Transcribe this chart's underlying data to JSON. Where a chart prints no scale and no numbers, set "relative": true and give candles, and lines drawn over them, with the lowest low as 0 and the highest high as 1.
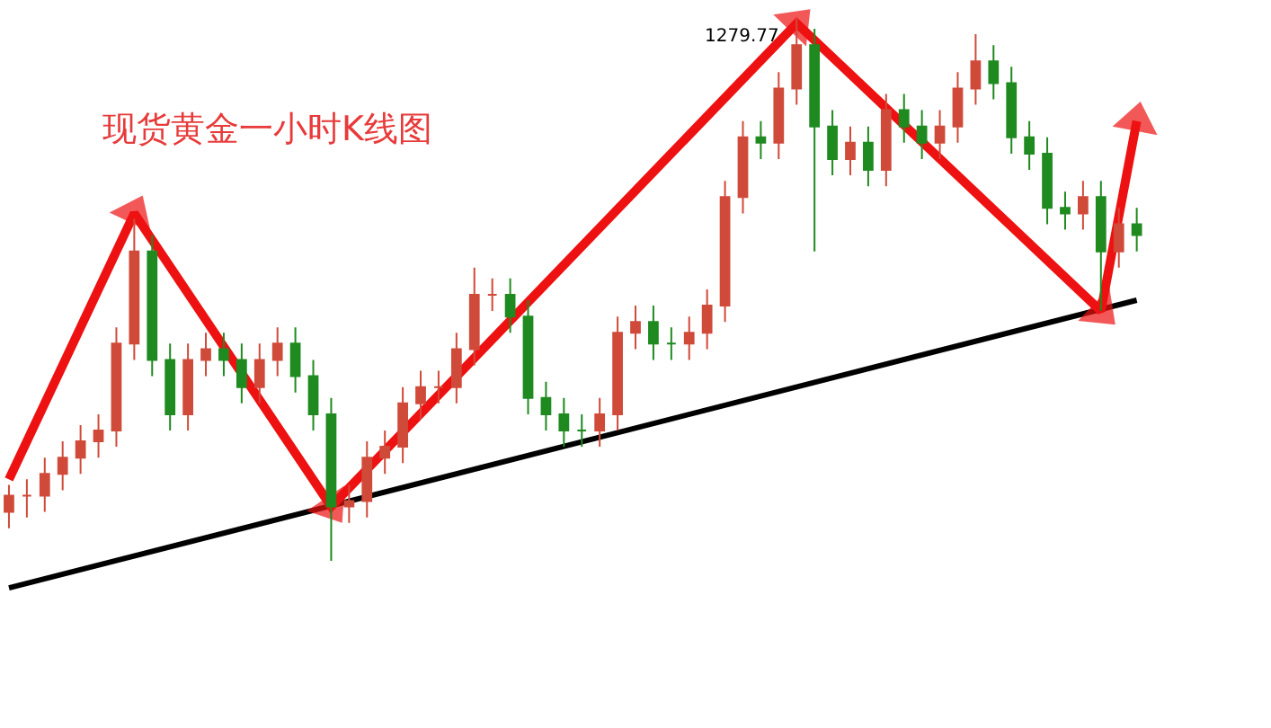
{
  "chart_data": {
    "type": "candlestick",
    "title": "现货黄金一小时K线图",
    "relative": true,
    "categories": [
      null,
      null,
      null,
      null,
      null,
      null,
      null,
      null,
      null,
      null,
      null,
      null,
      null,
      null,
      null,
      null,
      null,
      null,
      null,
      null,
      null,
      null,
      null,
      null,
      null,
      null,
      null,
      null,
      null,
      null,
      null,
      null,
      null,
      null,
      null,
      null,
      null,
      null,
      null,
      null,
      null,
      null,
      null,
      null,
      null,
      null,
      null,
      null,
      null,
      null,
      null,
      null,
      null,
      null,
      null,
      null,
      null,
      null,
      null,
      null,
      null,
      null,
      null,
      null
    ],
    "ohlc": [
      [
        0.09,
        0.14,
        0.06,
        0.12
      ],
      [
        0.12,
        0.15,
        0.08,
        0.12
      ],
      [
        0.12,
        0.19,
        0.09,
        0.16
      ],
      [
        0.16,
        0.22,
        0.13,
        0.19
      ],
      [
        0.19,
        0.25,
        0.16,
        0.22
      ],
      [
        0.22,
        0.27,
        0.19,
        0.24
      ],
      [
        0.24,
        0.43,
        0.21,
        0.4
      ],
      [
        0.4,
        0.63,
        0.37,
        0.57
      ],
      [
        0.57,
        0.6,
        0.34,
        0.37
      ],
      [
        0.37,
        0.4,
        0.24,
        0.27
      ],
      [
        0.27,
        0.4,
        0.24,
        0.37
      ],
      [
        0.37,
        0.42,
        0.34,
        0.39
      ],
      [
        0.39,
        0.42,
        0.34,
        0.37
      ],
      [
        0.37,
        0.4,
        0.29,
        0.32
      ],
      [
        0.32,
        0.4,
        0.29,
        0.37
      ],
      [
        0.37,
        0.43,
        0.34,
        0.4
      ],
      [
        0.4,
        0.43,
        0.31,
        0.34
      ],
      [
        0.34,
        0.37,
        0.24,
        0.27
      ],
      [
        0.27,
        0.3,
        0,
        0.1
      ],
      [
        0.1,
        0.14,
        0.07,
        0.11
      ],
      [
        0.11,
        0.22,
        0.08,
        0.19
      ],
      [
        0.19,
        0.24,
        0.16,
        0.21
      ],
      [
        0.21,
        0.32,
        0.18,
        0.29
      ],
      [
        0.29,
        0.35,
        0.26,
        0.32
      ],
      [
        0.32,
        0.35,
        0.29,
        0.32
      ],
      [
        0.32,
        0.42,
        0.29,
        0.39
      ],
      [
        0.39,
        0.54,
        0.36,
        0.49
      ],
      [
        0.49,
        0.52,
        0.46,
        0.49
      ],
      [
        0.49,
        0.52,
        0.42,
        0.45
      ],
      [
        0.45,
        0.48,
        0.27,
        0.3
      ],
      [
        0.3,
        0.33,
        0.24,
        0.27
      ],
      [
        0.27,
        0.3,
        0.21,
        0.24
      ],
      [
        0.24,
        0.27,
        0.21,
        0.24
      ],
      [
        0.24,
        0.3,
        0.21,
        0.27
      ],
      [
        0.27,
        0.45,
        0.24,
        0.42
      ],
      [
        0.42,
        0.47,
        0.39,
        0.44
      ],
      [
        0.44,
        0.47,
        0.37,
        0.4
      ],
      [
        0.4,
        0.43,
        0.37,
        0.4
      ],
      [
        0.4,
        0.45,
        0.37,
        0.42
      ],
      [
        0.42,
        0.5,
        0.39,
        0.47
      ],
      [
        0.47,
        0.7,
        0.44,
        0.67
      ],
      [
        0.67,
        0.81,
        0.64,
        0.78
      ],
      [
        0.78,
        0.81,
        0.74,
        0.77
      ],
      [
        0.77,
        0.9,
        0.74,
        0.87
      ],
      [
        0.87,
        1,
        0.84,
        0.95
      ],
      [
        0.95,
        0.98,
        0.57,
        0.8
      ],
      [
        0.8,
        0.83,
        0.71,
        0.74
      ],
      [
        0.74,
        0.8,
        0.71,
        0.77
      ],
      [
        0.77,
        0.8,
        0.69,
        0.72
      ],
      [
        0.72,
        0.86,
        0.69,
        0.83
      ],
      [
        0.83,
        0.86,
        0.77,
        0.8
      ],
      [
        0.8,
        0.83,
        0.74,
        0.77
      ],
      [
        0.77,
        0.83,
        0.74,
        0.8
      ],
      [
        0.8,
        0.9,
        0.77,
        0.87
      ],
      [
        0.87,
        0.97,
        0.84,
        0.92
      ],
      [
        0.92,
        0.95,
        0.85,
        0.88
      ],
      [
        0.88,
        0.91,
        0.75,
        0.78
      ],
      [
        0.78,
        0.81,
        0.72,
        0.75
      ],
      [
        0.75,
        0.78,
        0.62,
        0.65
      ],
      [
        0.65,
        0.68,
        0.61,
        0.64
      ],
      [
        0.64,
        0.7,
        0.61,
        0.67
      ],
      [
        0.67,
        0.7,
        0.46,
        0.57
      ],
      [
        0.57,
        0.65,
        0.54,
        0.62
      ],
      [
        0.62,
        0.65,
        0.57,
        0.6
      ]
    ],
    "series": [
      {
        "type": "line",
        "color": "#000000",
        "marker": "none",
        "values": [
          -0.05,
          null,
          null,
          null,
          null,
          null,
          null,
          null,
          null,
          null,
          null,
          null,
          null,
          null,
          null,
          null,
          null,
          null,
          null,
          null,
          null,
          null,
          null,
          null,
          null,
          null,
          null,
          null,
          null,
          null,
          null,
          null,
          null,
          null,
          null,
          null,
          null,
          null,
          null,
          null,
          null,
          null,
          null,
          null,
          null,
          null,
          null,
          null,
          null,
          null,
          null,
          null,
          null,
          null,
          null,
          null,
          null,
          null,
          null,
          null,
          null,
          null,
          null,
          0.48
        ]
      },
      {
        "type": "line",
        "color": "#ee1111",
        "marker": "triangle",
        "values": [
          0.15,
          null,
          null,
          null,
          null,
          null,
          null,
          0.64,
          null,
          null,
          null,
          null,
          null,
          null,
          null,
          null,
          null,
          null,
          0.1,
          null,
          null,
          null,
          null,
          null,
          null,
          null,
          null,
          null,
          null,
          null,
          null,
          null,
          null,
          null,
          null,
          null,
          null,
          null,
          null,
          null,
          null,
          null,
          null,
          null,
          0.99,
          null,
          null,
          null,
          null,
          null,
          null,
          null,
          null,
          null,
          null,
          null,
          null,
          null,
          null,
          null,
          null,
          0.46,
          null,
          0.81
        ]
      }
    ],
    "annotations": [
      "1279.77"
    ]
  }
}
